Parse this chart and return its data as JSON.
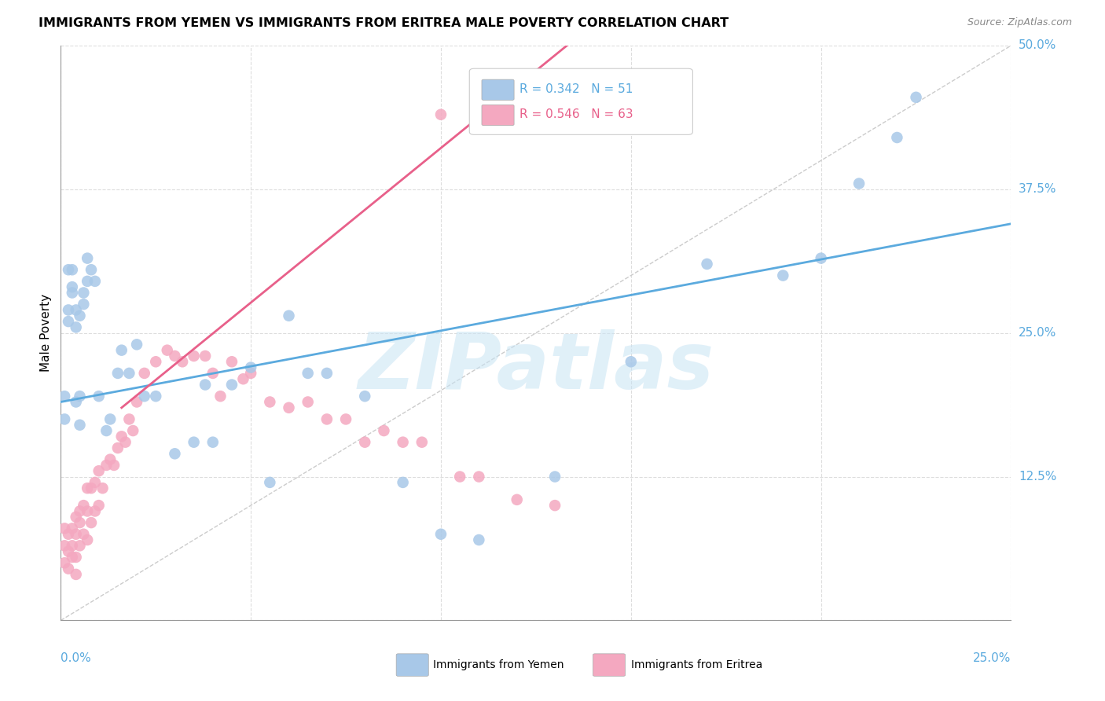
{
  "title": "IMMIGRANTS FROM YEMEN VS IMMIGRANTS FROM ERITREA MALE POVERTY CORRELATION CHART",
  "source": "Source: ZipAtlas.com",
  "ylabel": "Male Poverty",
  "xlim": [
    0.0,
    0.25
  ],
  "ylim": [
    0.0,
    0.5
  ],
  "watermark": "ZIPatlas",
  "legend1_label": "R = 0.342   N = 51",
  "legend2_label": "R = 0.546   N = 63",
  "legend_footer1": "Immigrants from Yemen",
  "legend_footer2": "Immigrants from Eritrea",
  "yemen_color": "#a8c8e8",
  "eritrea_color": "#f4a8c0",
  "yemen_line_color": "#5baade",
  "eritrea_line_color": "#e8608a",
  "ref_line_color": "#cccccc",
  "grid_color": "#dddddd",
  "ytick_color": "#5baade",
  "xtick_color": "#5baade",
  "yemen_x": [
    0.001,
    0.001,
    0.002,
    0.002,
    0.002,
    0.003,
    0.003,
    0.003,
    0.004,
    0.004,
    0.004,
    0.005,
    0.005,
    0.005,
    0.006,
    0.006,
    0.007,
    0.007,
    0.008,
    0.009,
    0.01,
    0.012,
    0.013,
    0.015,
    0.016,
    0.018,
    0.02,
    0.022,
    0.025,
    0.03,
    0.035,
    0.038,
    0.04,
    0.045,
    0.05,
    0.055,
    0.06,
    0.065,
    0.07,
    0.08,
    0.09,
    0.1,
    0.11,
    0.13,
    0.15,
    0.17,
    0.19,
    0.2,
    0.21,
    0.22,
    0.225
  ],
  "yemen_y": [
    0.195,
    0.175,
    0.27,
    0.305,
    0.26,
    0.29,
    0.285,
    0.305,
    0.27,
    0.255,
    0.19,
    0.265,
    0.195,
    0.17,
    0.285,
    0.275,
    0.315,
    0.295,
    0.305,
    0.295,
    0.195,
    0.165,
    0.175,
    0.215,
    0.235,
    0.215,
    0.24,
    0.195,
    0.195,
    0.145,
    0.155,
    0.205,
    0.155,
    0.205,
    0.22,
    0.12,
    0.265,
    0.215,
    0.215,
    0.195,
    0.12,
    0.075,
    0.07,
    0.125,
    0.225,
    0.31,
    0.3,
    0.315,
    0.38,
    0.42,
    0.455
  ],
  "eritrea_x": [
    0.001,
    0.001,
    0.001,
    0.002,
    0.002,
    0.002,
    0.003,
    0.003,
    0.003,
    0.004,
    0.004,
    0.004,
    0.004,
    0.005,
    0.005,
    0.005,
    0.006,
    0.006,
    0.007,
    0.007,
    0.007,
    0.008,
    0.008,
    0.009,
    0.009,
    0.01,
    0.01,
    0.011,
    0.012,
    0.013,
    0.014,
    0.015,
    0.016,
    0.017,
    0.018,
    0.019,
    0.02,
    0.022,
    0.025,
    0.028,
    0.03,
    0.032,
    0.035,
    0.038,
    0.04,
    0.042,
    0.045,
    0.048,
    0.05,
    0.055,
    0.06,
    0.065,
    0.07,
    0.075,
    0.08,
    0.085,
    0.09,
    0.095,
    0.1,
    0.105,
    0.11,
    0.12,
    0.13
  ],
  "eritrea_y": [
    0.08,
    0.065,
    0.05,
    0.075,
    0.06,
    0.045,
    0.08,
    0.065,
    0.055,
    0.09,
    0.075,
    0.055,
    0.04,
    0.095,
    0.085,
    0.065,
    0.1,
    0.075,
    0.115,
    0.095,
    0.07,
    0.115,
    0.085,
    0.12,
    0.095,
    0.13,
    0.1,
    0.115,
    0.135,
    0.14,
    0.135,
    0.15,
    0.16,
    0.155,
    0.175,
    0.165,
    0.19,
    0.215,
    0.225,
    0.235,
    0.23,
    0.225,
    0.23,
    0.23,
    0.215,
    0.195,
    0.225,
    0.21,
    0.215,
    0.19,
    0.185,
    0.19,
    0.175,
    0.175,
    0.155,
    0.165,
    0.155,
    0.155,
    0.44,
    0.125,
    0.125,
    0.105,
    0.1
  ],
  "yemen_line": [
    0.0,
    0.25,
    0.19,
    0.345
  ],
  "eritrea_line": [
    0.016,
    0.135,
    0.185,
    0.505
  ],
  "ref_line": [
    0.0,
    0.25,
    0.0,
    0.5
  ],
  "ytick_vals": [
    0.0,
    0.125,
    0.25,
    0.375,
    0.5
  ],
  "ytick_labels": [
    "",
    "12.5%",
    "25.0%",
    "37.5%",
    "50.0%"
  ],
  "xtick_vals": [
    0.0,
    0.05,
    0.1,
    0.15,
    0.2,
    0.25
  ]
}
